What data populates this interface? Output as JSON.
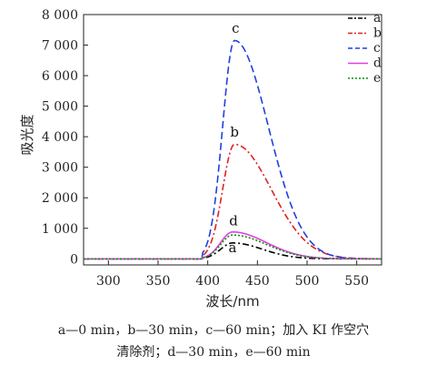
{
  "chart_data": {
    "type": "line",
    "xlabel": "波长/nm",
    "ylabel": "吸光度",
    "xlim": [
      275,
      575
    ],
    "ylim": [
      -200,
      8000
    ],
    "x_ticks": [
      300,
      350,
      400,
      450,
      500,
      550
    ],
    "y_ticks": [
      0,
      1000,
      2000,
      3000,
      4000,
      5000,
      6000,
      7000,
      8000
    ],
    "x_tick_labels": [
      "300",
      "350",
      "400",
      "450",
      "500",
      "550"
    ],
    "y_tick_labels": [
      "0",
      "1 000",
      "2 000",
      "3 000",
      "4 000",
      "5 000",
      "6 000",
      "7 000",
      "8 000"
    ],
    "legend_position": "top-right",
    "series": [
      {
        "name": "a",
        "color": "#000000",
        "dash": "dash-dot",
        "peak_x": 425,
        "peak_y": 520,
        "width_left": 12,
        "width_right": 30
      },
      {
        "name": "b",
        "color": "#e02020",
        "dash": "dash-dot",
        "peak_x": 427,
        "peak_y": 3750,
        "width_left": 12,
        "width_right": 37
      },
      {
        "name": "c",
        "color": "#1f3fe0",
        "dash": "dashed",
        "peak_x": 427,
        "peak_y": 7150,
        "width_left": 12,
        "width_right": 34
      },
      {
        "name": "d",
        "color": "#e040e0",
        "dash": "solid",
        "peak_x": 425,
        "peak_y": 880,
        "width_left": 12,
        "width_right": 34
      },
      {
        "name": "e",
        "color": "#138a13",
        "dash": "dotted",
        "peak_x": 425,
        "peak_y": 780,
        "width_left": 12,
        "width_right": 34
      }
    ],
    "curve_labels": [
      {
        "text": "c",
        "x": 428,
        "y": 7400
      },
      {
        "text": "b",
        "x": 427,
        "y": 4000
      },
      {
        "text": "d",
        "x": 426,
        "y": 1100
      },
      {
        "text": "a",
        "x": 425,
        "y": 220
      }
    ]
  },
  "caption": {
    "line1": "a—0 min，b—30 min，c—60 min；加入 KI 作空穴",
    "line2": "清除剂；d—30 min，e—60 min"
  }
}
